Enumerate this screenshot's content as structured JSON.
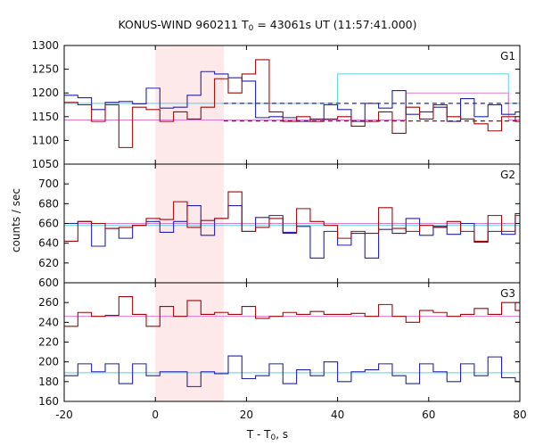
{
  "header": {
    "title_pre": "KONUS-WIND 960211 T",
    "title_sub": "0",
    "title_post": " = 43061s UT (11:57:41.000)"
  },
  "axes": {
    "xlabel_pre": "T - T",
    "xlabel_sub": "0",
    "xlabel_post": ", s",
    "ylabel": "counts / sec"
  },
  "colors": {
    "red_series": "#9b0a0a",
    "blue_series": "#2323a8",
    "cyan_fit": "#5ad0e0",
    "pink_fit": "#e07ad0",
    "shade": "#fde8ea"
  },
  "chart_data": {
    "type": "line",
    "style": "step",
    "xlim": [
      -20,
      80
    ],
    "xticks": [
      -20,
      0,
      20,
      40,
      60,
      80
    ],
    "shaded_interval": [
      0,
      15
    ],
    "bin_width": 3,
    "bin_start": -20,
    "panels": [
      {
        "label": "G1",
        "ylim": [
          1050,
          1300
        ],
        "yticks": [
          1050,
          1100,
          1150,
          1200,
          1250,
          1300
        ],
        "series": [
          {
            "color": "blue",
            "values": [
              1195,
              1190,
              1165,
              1180,
              1182,
              1177,
              1210,
              1168,
              1170,
              1195,
              1245,
              1240,
              1232,
              1225,
              1148,
              1150,
              1148,
              1140,
              1145,
              1175,
              1165,
              1140,
              1178,
              1168,
              1205,
              1155,
              1160,
              1170,
              1140,
              1188,
              1150,
              1175,
              1155,
              1160,
              1170,
              1150,
              1180
            ]
          },
          {
            "color": "red",
            "values": [
              1180,
              1175,
              1140,
              1175,
              1085,
              1170,
              1165,
              1140,
              1160,
              1145,
              1170,
              1230,
              1200,
              1240,
              1270,
              1160,
              1140,
              1150,
              1140,
              1145,
              1150,
              1130,
              1140,
              1160,
              1115,
              1170,
              1145,
              1175,
              1150,
              1145,
              1135,
              1120,
              1150,
              1140,
              1170,
              1125,
              1165
            ]
          }
        ],
        "fits": [
          {
            "color": "cyan",
            "values": [
              1178,
              1178,
              1178,
              1178,
              1178,
              1178,
              1178,
              1178,
              1240,
              1240,
              1240,
              1240,
              1240,
              1178
            ]
          },
          {
            "color": "pink",
            "values": [
              1143,
              1143,
              1143,
              1143,
              1143,
              1143,
              1143,
              1143,
              1143,
              1143,
              1200,
              1200,
              1200,
              1143
            ]
          }
        ],
        "fit_levels": [
          {
            "color": "blue",
            "value": 1178,
            "dashed": true
          },
          {
            "color": "red",
            "value": 1141,
            "dashed": true
          }
        ]
      },
      {
        "label": "G2",
        "ylim": [
          600,
          720
        ],
        "yticks": [
          600,
          620,
          640,
          660,
          680,
          700
        ],
        "series": [
          {
            "color": "blue",
            "values": [
              660,
              662,
              637,
              655,
              645,
              658,
              662,
              651,
              662,
              678,
              648,
              665,
              678,
              652,
              666,
              668,
              651,
              657,
              625,
              652,
              638,
              650,
              625,
              654,
              650,
              665,
              648,
              657,
              649,
              660,
              641,
              652,
              649,
              668,
              656,
              668,
              660
            ]
          },
          {
            "color": "red",
            "values": [
              642,
              662,
              660,
              655,
              656,
              658,
              665,
              664,
              682,
              656,
              663,
              665,
              692,
              652,
              656,
              665,
              650,
              675,
              662,
              658,
              645,
              652,
              650,
              676,
              655,
              652,
              658,
              656,
              662,
              652,
              642,
              668,
              652,
              670,
              658,
              655,
              621
            ]
          }
        ],
        "fits": [
          {
            "color": "cyan",
            "values": [
              658,
              658,
              658,
              658,
              658,
              658,
              658,
              658,
              658,
              658,
              658,
              658,
              658,
              658
            ]
          },
          {
            "color": "pink",
            "values": [
              660,
              660,
              660,
              660,
              660,
              660,
              660,
              660,
              660,
              660,
              660,
              660,
              660,
              660
            ]
          }
        ],
        "fit_levels": []
      },
      {
        "label": "G3",
        "ylim": [
          160,
          280
        ],
        "yticks": [
          160,
          180,
          200,
          220,
          240,
          260
        ],
        "series": [
          {
            "color": "red",
            "values": [
              236,
              250,
              246,
              247,
              266,
              248,
              236,
              256,
              246,
              262,
              248,
              250,
              248,
              256,
              244,
              246,
              250,
              248,
              251,
              248,
              248,
              249,
              246,
              258,
              246,
              240,
              252,
              250,
              246,
              248,
              254,
              248,
              260,
              252,
              250,
              242,
              240
            ]
          },
          {
            "color": "blue",
            "values": [
              186,
              198,
              190,
              198,
              178,
              198,
              186,
              190,
              190,
              175,
              190,
              188,
              206,
              183,
              186,
              198,
              178,
              192,
              186,
              200,
              180,
              190,
              192,
              198,
              186,
              178,
              198,
              190,
              180,
              198,
              186,
              205,
              184,
              180,
              190,
              182,
              176
            ]
          }
        ],
        "fits": [
          {
            "color": "pink",
            "values": [
              246,
              246,
              246,
              246,
              246,
              246,
              246,
              246,
              246,
              246,
              246,
              246,
              246,
              246
            ]
          },
          {
            "color": "cyan",
            "values": [
              189,
              189,
              189,
              189,
              189,
              189,
              189,
              189,
              189,
              189,
              189,
              189,
              189,
              189
            ]
          }
        ],
        "fit_levels": []
      }
    ]
  }
}
